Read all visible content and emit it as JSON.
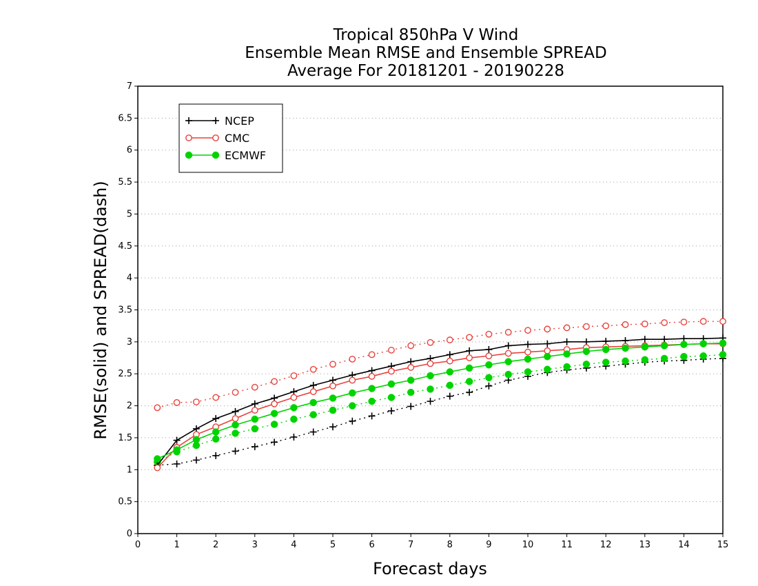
{
  "chart_data": {
    "type": "line",
    "title_lines": [
      "Tropical 850hPa V Wind",
      "Ensemble Mean RMSE and Ensemble SPREAD",
      "Average For 20181201 - 20190228"
    ],
    "xlabel": "Forecast days",
    "ylabel": "RMSE(solid) and SPREAD(dash)",
    "xlim": [
      0,
      15
    ],
    "ylim": [
      0,
      7
    ],
    "x_ticks": [
      "0",
      "1",
      "2",
      "3",
      "4",
      "5",
      "6",
      "7",
      "8",
      "9",
      "10",
      "11",
      "12",
      "13",
      "14",
      "15"
    ],
    "y_ticks": [
      "0",
      "0.5",
      "1",
      "1.5",
      "2",
      "2.5",
      "3",
      "3.5",
      "4",
      "4.5",
      "5",
      "5.5",
      "6",
      "6.5",
      "7"
    ],
    "grid": "horizontal dotted",
    "legend_position": "top-left",
    "x": [
      0.5,
      1,
      1.5,
      2,
      2.5,
      3,
      3.5,
      4,
      4.5,
      5,
      5.5,
      6,
      6.5,
      7,
      7.5,
      8,
      8.5,
      9,
      9.5,
      10,
      10.5,
      11,
      11.5,
      12,
      12.5,
      13,
      13.5,
      14,
      14.5,
      15
    ],
    "series": [
      {
        "name": "NCEP",
        "color": "#000000",
        "marker": "plus",
        "rmse": [
          1.07,
          1.46,
          1.64,
          1.8,
          1.91,
          2.03,
          2.12,
          2.22,
          2.32,
          2.4,
          2.48,
          2.55,
          2.62,
          2.69,
          2.74,
          2.8,
          2.86,
          2.88,
          2.94,
          2.96,
          2.97,
          3.0,
          3.0,
          3.01,
          3.02,
          3.04,
          3.04,
          3.05,
          3.05,
          3.06
        ],
        "spread": [
          1.07,
          1.09,
          1.15,
          1.22,
          1.29,
          1.36,
          1.43,
          1.51,
          1.59,
          1.67,
          1.76,
          1.84,
          1.92,
          1.99,
          2.07,
          2.15,
          2.21,
          2.31,
          2.4,
          2.46,
          2.52,
          2.56,
          2.59,
          2.62,
          2.65,
          2.68,
          2.7,
          2.71,
          2.73,
          2.74
        ]
      },
      {
        "name": "CMC",
        "color": "#e8413c",
        "marker": "open-circle",
        "rmse": [
          1.03,
          1.35,
          1.55,
          1.67,
          1.8,
          1.93,
          2.03,
          2.13,
          2.22,
          2.31,
          2.4,
          2.46,
          2.54,
          2.6,
          2.66,
          2.7,
          2.75,
          2.78,
          2.82,
          2.84,
          2.86,
          2.88,
          2.91,
          2.92,
          2.93,
          2.94,
          2.95,
          2.96,
          2.97,
          2.97
        ],
        "spread": [
          1.97,
          2.05,
          2.06,
          2.13,
          2.21,
          2.29,
          2.38,
          2.47,
          2.57,
          2.65,
          2.73,
          2.8,
          2.87,
          2.94,
          2.99,
          3.03,
          3.07,
          3.12,
          3.15,
          3.18,
          3.2,
          3.22,
          3.24,
          3.25,
          3.27,
          3.28,
          3.3,
          3.31,
          3.32,
          3.32
        ]
      },
      {
        "name": "ECMWF",
        "color": "#00d400",
        "marker": "filled-circle",
        "rmse": [
          1.17,
          1.31,
          1.47,
          1.59,
          1.7,
          1.79,
          1.88,
          1.97,
          2.05,
          2.12,
          2.2,
          2.27,
          2.34,
          2.4,
          2.47,
          2.53,
          2.59,
          2.64,
          2.69,
          2.73,
          2.77,
          2.81,
          2.85,
          2.88,
          2.9,
          2.92,
          2.94,
          2.96,
          2.97,
          2.98
        ],
        "spread": [
          1.12,
          1.28,
          1.38,
          1.48,
          1.57,
          1.64,
          1.71,
          1.79,
          1.86,
          1.93,
          2.0,
          2.07,
          2.13,
          2.21,
          2.26,
          2.32,
          2.38,
          2.44,
          2.49,
          2.53,
          2.57,
          2.61,
          2.65,
          2.68,
          2.7,
          2.72,
          2.74,
          2.77,
          2.78,
          2.8
        ]
      }
    ]
  }
}
